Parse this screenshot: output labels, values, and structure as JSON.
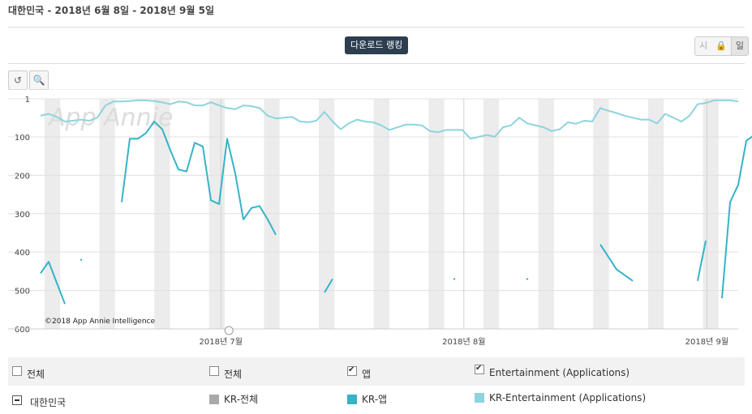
{
  "header": {
    "title": "대한민국 - 2018년 6월 8일 - 2018년 9월 5일"
  },
  "toolbar": {
    "download_label": "다운로드 랭킹",
    "granularity": [
      "시",
      "일"
    ],
    "reset_icon": "undo-icon",
    "zoom_icon": "zoom-in-icon"
  },
  "chart_data": {
    "type": "line",
    "watermark": "App Annie",
    "copyright": "©2018 App Annie Intelligence",
    "y_axis": {
      "inverted": true,
      "ylim": [
        1,
        600
      ],
      "ticks": [
        1,
        100,
        200,
        300,
        400,
        500,
        600
      ]
    },
    "x_axis": {
      "start": "2018-06-08",
      "end": "2018-09-05",
      "tick_labels": [
        "2018년 7월",
        "2018년 8월",
        "2018년 9월"
      ],
      "tick_dates": [
        "2018-07-01",
        "2018-08-01",
        "2018-09-01"
      ]
    },
    "weekend_bands": true,
    "colors": {
      "overall": "#a9a9a9",
      "app": "#36b3c7",
      "entertainment": "#8dd4de"
    },
    "series": [
      {
        "name": "KR-Entertainment (Applications)",
        "color": "#8dd4de",
        "values": [
          45,
          40,
          48,
          60,
          58,
          55,
          58,
          50,
          18,
          8,
          8,
          7,
          5,
          5,
          7,
          10,
          15,
          8,
          10,
          18,
          18,
          10,
          18,
          25,
          28,
          18,
          20,
          25,
          45,
          52,
          50,
          48,
          60,
          62,
          58,
          35,
          60,
          80,
          65,
          55,
          60,
          62,
          70,
          82,
          75,
          68,
          68,
          70,
          85,
          88,
          82,
          82,
          82,
          105,
          100,
          95,
          100,
          75,
          70,
          50,
          65,
          70,
          75,
          85,
          80,
          62,
          66,
          58,
          60,
          25,
          32,
          38,
          45,
          50,
          55,
          55,
          65,
          40,
          50,
          60,
          45,
          15,
          12,
          5,
          5,
          5,
          8
        ]
      },
      {
        "name": "KR-앱",
        "color": "#36b3c7",
        "values": [
          455,
          425,
          480,
          535,
          null,
          420,
          null,
          null,
          null,
          null,
          270,
          105,
          105,
          90,
          60,
          80,
          135,
          185,
          190,
          115,
          125,
          265,
          275,
          105,
          195,
          315,
          285,
          280,
          315,
          355,
          null,
          null,
          null,
          null,
          null,
          505,
          470,
          null,
          null,
          null,
          null,
          null,
          null,
          null,
          null,
          null,
          null,
          null,
          null,
          null,
          null,
          null,
          null,
          null,
          null,
          null,
          null,
          null,
          null,
          null,
          null,
          null,
          null,
          null,
          null,
          null,
          null,
          null,
          null,
          null,
          null,
          null,
          null,
          null,
          null,
          null,
          null,
          null,
          null,
          null,
          null,
          null,
          null,
          null,
          null,
          null,
          null,
          null,
          null,
          null
        ]
      },
      {
        "name": "KR-전체",
        "color": "#a9a9a9",
        "values": []
      }
    ]
  },
  "legend": {
    "row1": [
      {
        "label": "전체",
        "checked": false
      },
      {
        "label": "전체",
        "checked": false
      },
      {
        "label": "앱",
        "checked": true
      },
      {
        "label": "Entertainment (Applications)",
        "checked": true
      }
    ],
    "row2": {
      "country": "대한민국",
      "items": [
        {
          "label": "KR-전체",
          "color": "#a9a9a9"
        },
        {
          "label": "KR-앱",
          "color": "#36b3c7"
        },
        {
          "label": "KR-Entertainment (Applications)",
          "color": "#8dd4de"
        }
      ]
    }
  }
}
